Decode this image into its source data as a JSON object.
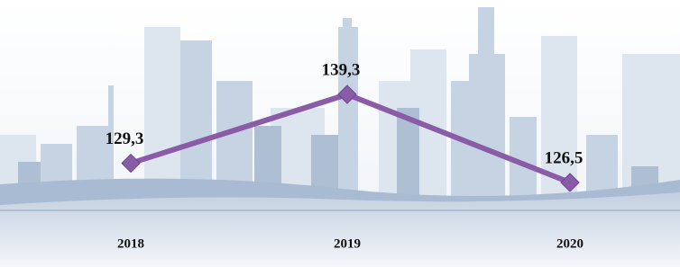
{
  "chart_data": {
    "type": "line",
    "categories": [
      "2018",
      "2019",
      "2020"
    ],
    "values": [
      129.3,
      139.3,
      126.5
    ],
    "value_labels": [
      "129,3",
      "139,3",
      "126,5"
    ],
    "color": "#8a5ba6"
  }
}
